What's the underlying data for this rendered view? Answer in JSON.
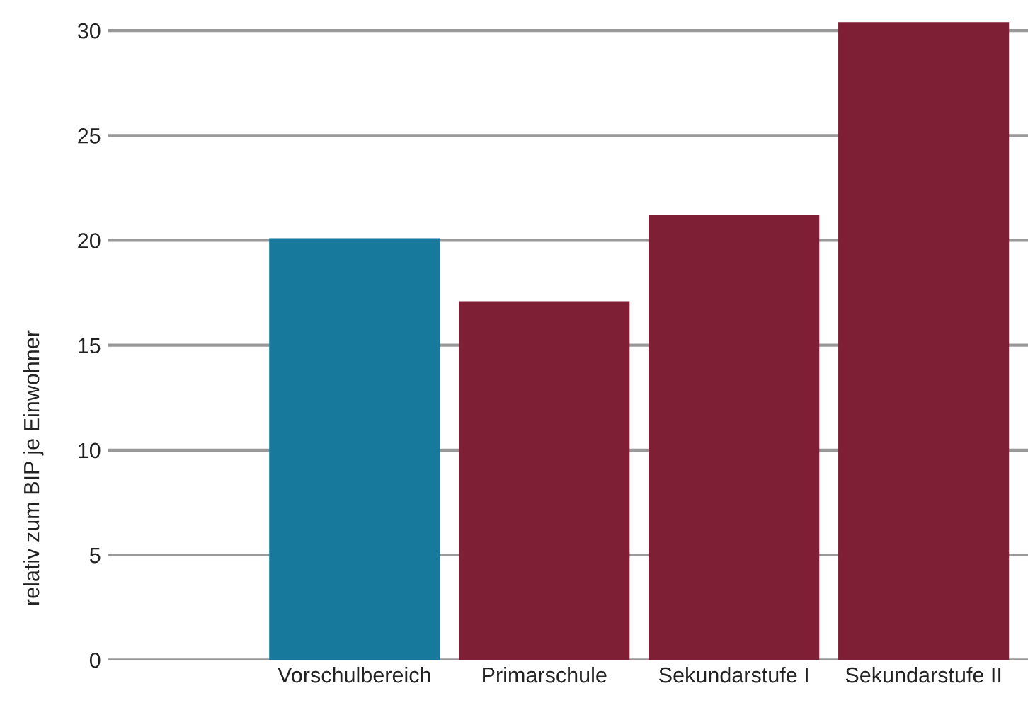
{
  "chart_data": {
    "type": "bar",
    "ylabel": "relativ zum BIP je Einwohner",
    "categories": [
      "Vorschulbereich",
      "Primarschule",
      "Sekundarstufe I",
      "Sekundarstufe II"
    ],
    "values": [
      20.1,
      17.1,
      21.2,
      30.4
    ],
    "colors": [
      "#177a9c",
      "#7e1f35",
      "#7e1f35",
      "#7e1f35"
    ],
    "ylim": [
      0,
      30.5
    ],
    "yticks": [
      0,
      5,
      10,
      15,
      20,
      25,
      30
    ],
    "grid": "y"
  }
}
